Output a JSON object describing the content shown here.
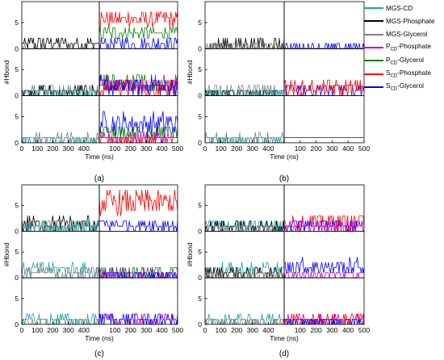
{
  "legend": {
    "items": [
      {
        "key": "mgs_cd",
        "label": "MGS-CD",
        "color": "#20a0a8"
      },
      {
        "key": "mgs_phosphate",
        "label": "MGS-Phosphate",
        "color": "#000000"
      },
      {
        "key": "mgs_glycerol",
        "label": "MGS-Glycerol",
        "color": "#808080"
      },
      {
        "key": "pcd_phosphate",
        "label_main": "P",
        "label_sub": "CD",
        "label_rest": "-Phosphate",
        "color": "#c000c0"
      },
      {
        "key": "pcd_glycerol",
        "label_main": "P",
        "label_sub": "CD",
        "label_rest": "-Glycerol",
        "color": "#008000"
      },
      {
        "key": "scd_phosphate",
        "label_main": "S",
        "label_sub": "CD",
        "label_rest": "-Phosphate",
        "color": "#ff0000"
      },
      {
        "key": "scd_glycerol",
        "label_main": "S",
        "label_sub": "CD",
        "label_rest": "-Glycerol",
        "color": "#0000ff"
      }
    ]
  },
  "axes": {
    "ylabel": "#Hbond",
    "xlabel": "Time (ns)",
    "yticks": [
      "0",
      "5"
    ],
    "xticks_left": [
      "0",
      "100",
      "200",
      "300",
      "400"
    ],
    "xticks_right": [
      "100",
      "200",
      "300",
      "400",
      "500"
    ]
  },
  "chart_data": {
    "type": "line",
    "xlim": [
      0,
      500
    ],
    "ylim": [
      0,
      9
    ],
    "xunit": "ns",
    "panels": [
      {
        "label": "(a)",
        "rows": [
          {
            "left": [
              {
                "series": "mgs_phosphate",
                "level": 1.0,
                "amp": 1.2
              },
              {
                "series": "mgs_glycerol",
                "level": 0.2,
                "amp": 0.4
              }
            ],
            "right": [
              {
                "series": "scd_phosphate",
                "level": 5.7,
                "amp": 1.6
              },
              {
                "series": "pcd_glycerol",
                "level": 3.0,
                "amp": 1.0
              },
              {
                "series": "scd_glycerol",
                "level": 1.0,
                "amp": 1.2
              }
            ]
          },
          {
            "left": [
              {
                "series": "mgs_glycerol",
                "level": 0.8,
                "amp": 1.3
              },
              {
                "series": "mgs_phosphate",
                "level": 0.8,
                "amp": 1.0
              },
              {
                "series": "mgs_cd",
                "level": 0.6,
                "amp": 0.8
              }
            ],
            "right": [
              {
                "series": "pcd_glycerol",
                "level": 2.3,
                "amp": 1.8
              },
              {
                "series": "pcd_phosphate",
                "level": 2.2,
                "amp": 1.6
              },
              {
                "series": "scd_phosphate",
                "level": 1.5,
                "amp": 1.5
              },
              {
                "series": "scd_glycerol",
                "level": 1.8,
                "amp": 1.8
              }
            ]
          },
          {
            "left": [
              {
                "series": "mgs_glycerol",
                "level": 0.8,
                "amp": 0.9
              },
              {
                "series": "mgs_cd",
                "level": 0.6,
                "amp": 0.8
              }
            ],
            "right": [
              {
                "series": "scd_glycerol",
                "level": 3.6,
                "amp": 2.2
              },
              {
                "series": "pcd_glycerol",
                "level": 2.0,
                "amp": 1.5
              },
              {
                "series": "pcd_phosphate",
                "level": 1.0,
                "amp": 1.0
              },
              {
                "series": "scd_phosphate",
                "level": 0.7,
                "amp": 0.8
              }
            ]
          }
        ]
      },
      {
        "label": "(b)",
        "rows": [
          {
            "left": [
              {
                "series": "mgs_phosphate",
                "level": 0.8,
                "amp": 1.4
              },
              {
                "series": "mgs_glycerol",
                "level": 0.5,
                "amp": 0.8
              }
            ],
            "right": [
              {
                "series": "scd_glycerol",
                "level": 0.3,
                "amp": 0.5
              },
              {
                "series": "mgs_phosphate",
                "level": 0.1,
                "amp": 0.2
              }
            ]
          },
          {
            "left": [
              {
                "series": "mgs_glycerol",
                "level": 0.9,
                "amp": 1.1
              },
              {
                "series": "mgs_phosphate",
                "level": 0.6,
                "amp": 0.9
              },
              {
                "series": "mgs_cd",
                "level": 0.4,
                "amp": 0.5
              }
            ],
            "right": [
              {
                "series": "scd_glycerol",
                "level": 1.2,
                "amp": 1.2
              },
              {
                "series": "scd_phosphate",
                "level": 1.5,
                "amp": 1.3
              }
            ]
          },
          {
            "left": [
              {
                "series": "mgs_glycerol",
                "level": 0.8,
                "amp": 0.9
              },
              {
                "series": "mgs_cd",
                "level": 0.6,
                "amp": 0.9
              }
            ],
            "right": [
              {
                "series": "scd_glycerol",
                "level": 1.0,
                "amp": 0.1
              }
            ]
          }
        ]
      },
      {
        "label": "(c)",
        "rows": [
          {
            "left": [
              {
                "series": "mgs_phosphate",
                "level": 1.4,
                "amp": 1.4
              },
              {
                "series": "mgs_glycerol",
                "level": 0.8,
                "amp": 1.0
              },
              {
                "series": "mgs_cd",
                "level": 0.8,
                "amp": 0.9
              }
            ],
            "right": [
              {
                "series": "scd_phosphate",
                "level": 5.5,
                "amp": 2.2
              },
              {
                "series": "scd_glycerol",
                "level": 1.3,
                "amp": 1.2
              }
            ]
          },
          {
            "left": [
              {
                "series": "mgs_cd",
                "level": 1.6,
                "amp": 1.4
              },
              {
                "series": "mgs_glycerol",
                "level": 0.9,
                "amp": 1.0
              }
            ],
            "right": [
              {
                "series": "pcd_glycerol",
                "level": 1.2,
                "amp": 1.2
              },
              {
                "series": "pcd_phosphate",
                "level": 0.8,
                "amp": 0.8
              },
              {
                "series": "scd_glycerol",
                "level": 0.6,
                "amp": 0.8
              }
            ]
          },
          {
            "left": [
              {
                "series": "mgs_cd",
                "level": 0.9,
                "amp": 1.0
              },
              {
                "series": "mgs_glycerol",
                "level": 0.6,
                "amp": 0.8
              }
            ],
            "right": [
              {
                "series": "pcd_phosphate",
                "level": 0.9,
                "amp": 1.0
              },
              {
                "series": "scd_glycerol",
                "level": 0.9,
                "amp": 1.0
              }
            ]
          }
        ]
      },
      {
        "label": "(d)",
        "rows": [
          {
            "left": [
              {
                "series": "mgs_cd",
                "level": 1.2,
                "amp": 1.2
              },
              {
                "series": "mgs_phosphate",
                "level": 0.9,
                "amp": 1.0
              },
              {
                "series": "mgs_glycerol",
                "level": 0.6,
                "amp": 0.8
              }
            ],
            "right": [
              {
                "series": "scd_phosphate",
                "level": 1.9,
                "amp": 1.6
              },
              {
                "series": "scd_glycerol",
                "level": 1.2,
                "amp": 1.0
              },
              {
                "series": "pcd_phosphate",
                "level": 0.9,
                "amp": 0.9
              }
            ]
          },
          {
            "left": [
              {
                "series": "mgs_cd",
                "level": 1.5,
                "amp": 1.3
              },
              {
                "series": "mgs_phosphate",
                "level": 1.0,
                "amp": 1.0
              },
              {
                "series": "mgs_glycerol",
                "level": 0.6,
                "amp": 0.7
              }
            ],
            "right": [
              {
                "series": "scd_glycerol",
                "level": 2.2,
                "amp": 1.5
              },
              {
                "series": "pcd_phosphate",
                "level": 0.6,
                "amp": 0.7
              }
            ]
          },
          {
            "left": [
              {
                "series": "mgs_cd",
                "level": 0.8,
                "amp": 1.0
              },
              {
                "series": "mgs_glycerol",
                "level": 0.4,
                "amp": 0.6
              }
            ],
            "right": [
              {
                "series": "scd_phosphate",
                "level": 0.9,
                "amp": 1.0
              },
              {
                "series": "pcd_phosphate",
                "level": 0.8,
                "amp": 0.8
              },
              {
                "series": "scd_glycerol",
                "level": 0.5,
                "amp": 0.6
              }
            ]
          }
        ]
      }
    ]
  }
}
